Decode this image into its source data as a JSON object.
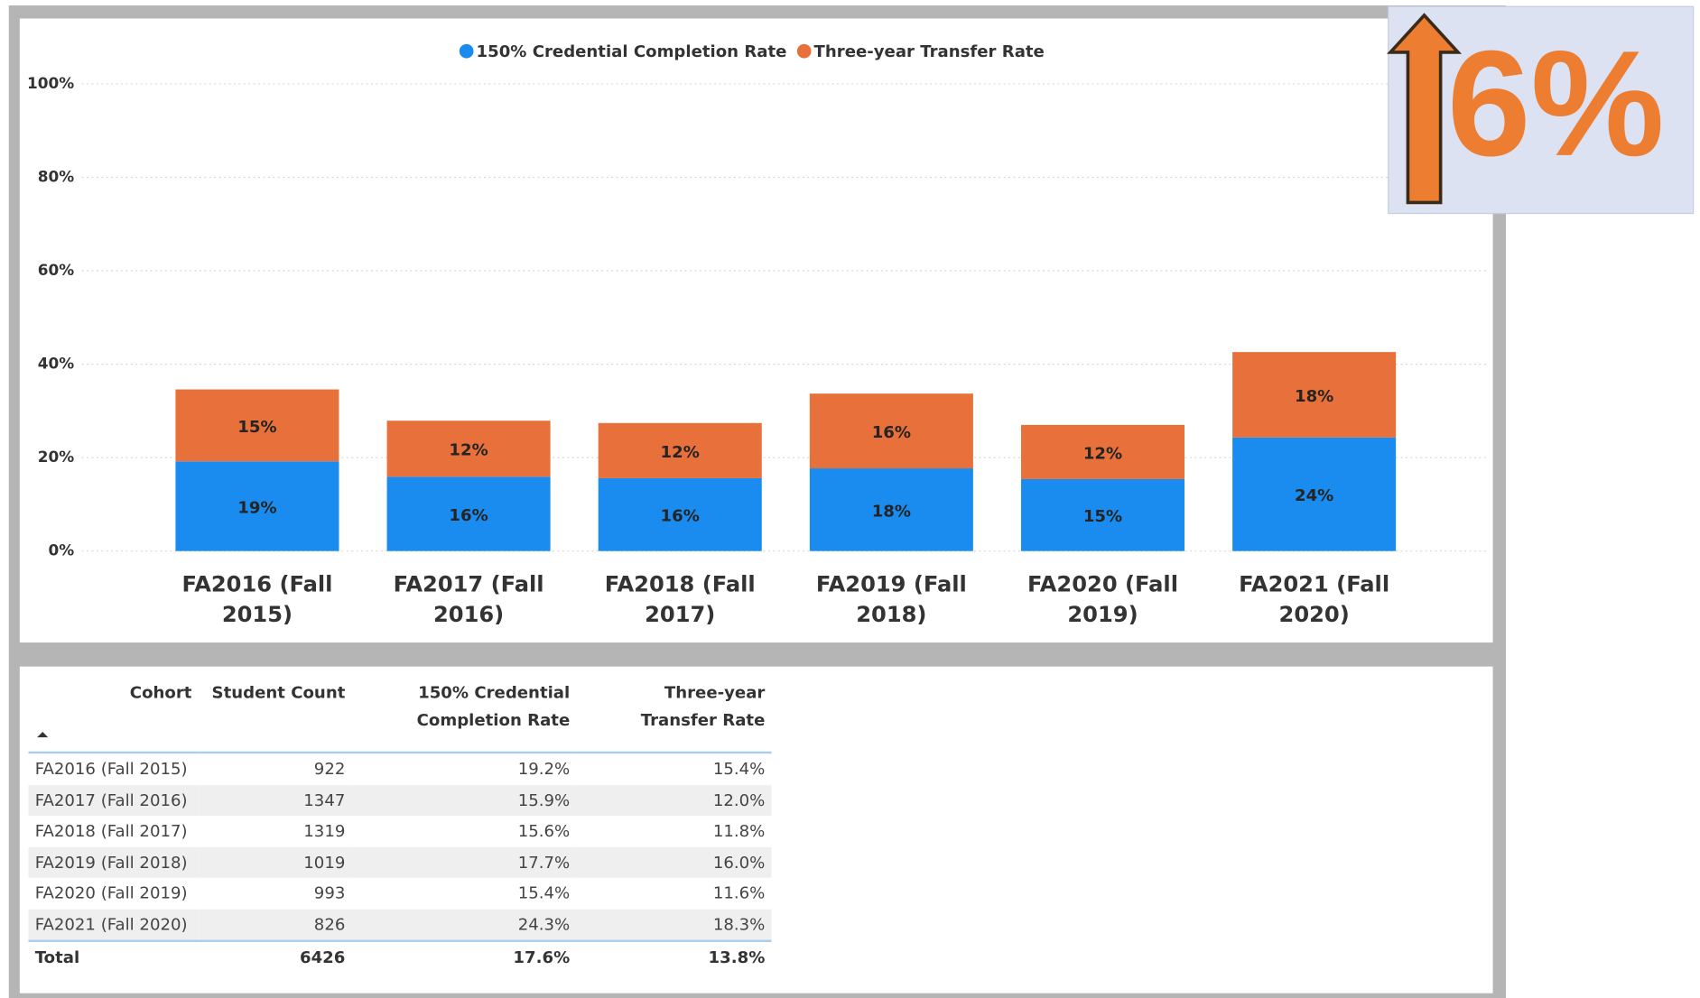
{
  "chart_data": {
    "type": "stacked_bar",
    "categories": [
      "FA2016 (Fall 2015)",
      "FA2017 (Fall 2016)",
      "FA2018 (Fall 2017)",
      "FA2019 (Fall 2018)",
      "FA2020 (Fall 2019)",
      "FA2021 (Fall 2020)"
    ],
    "series": [
      {
        "name": "150% Credential Completion Rate",
        "color": "#1a8cf0",
        "values": [
          19.2,
          15.9,
          15.6,
          17.7,
          15.4,
          24.3
        ],
        "value_labels": [
          "19%",
          "16%",
          "16%",
          "18%",
          "15%",
          "24%"
        ]
      },
      {
        "name": "Three-year Transfer Rate",
        "color": "#e8703a",
        "values": [
          15.4,
          12.0,
          11.8,
          16.0,
          11.6,
          18.3
        ],
        "value_labels": [
          "15%",
          "12%",
          "12%",
          "16%",
          "12%",
          "18%"
        ]
      }
    ],
    "ylim": [
      0,
      100
    ],
    "yticks": [
      {
        "value": 0,
        "label": "0%"
      },
      {
        "value": 20,
        "label": "20%"
      },
      {
        "value": 40,
        "label": "40%"
      },
      {
        "value": 60,
        "label": "60%"
      },
      {
        "value": 80,
        "label": "80%"
      },
      {
        "value": 100,
        "label": "100%"
      }
    ],
    "grid": true,
    "legend": "top"
  },
  "callout": {
    "text": "6%"
  },
  "table": {
    "columns": [
      "Cohort",
      "Student Count",
      "150% Credential Completion Rate",
      "Three-year Transfer Rate"
    ],
    "rows": [
      [
        "FA2016 (Fall 2015)",
        "922",
        "19.2%",
        "15.4%"
      ],
      [
        "FA2017 (Fall 2016)",
        "1347",
        "15.9%",
        "12.0%"
      ],
      [
        "FA2018 (Fall 2017)",
        "1319",
        "15.6%",
        "11.8%"
      ],
      [
        "FA2019 (Fall 2018)",
        "1019",
        "17.7%",
        "16.0%"
      ],
      [
        "FA2020 (Fall 2019)",
        "993",
        "15.4%",
        "11.6%"
      ],
      [
        "FA2021 (Fall 2020)",
        "826",
        "24.3%",
        "18.3%"
      ]
    ],
    "total": [
      "Total",
      "6426",
      "17.6%",
      "13.8%"
    ]
  }
}
